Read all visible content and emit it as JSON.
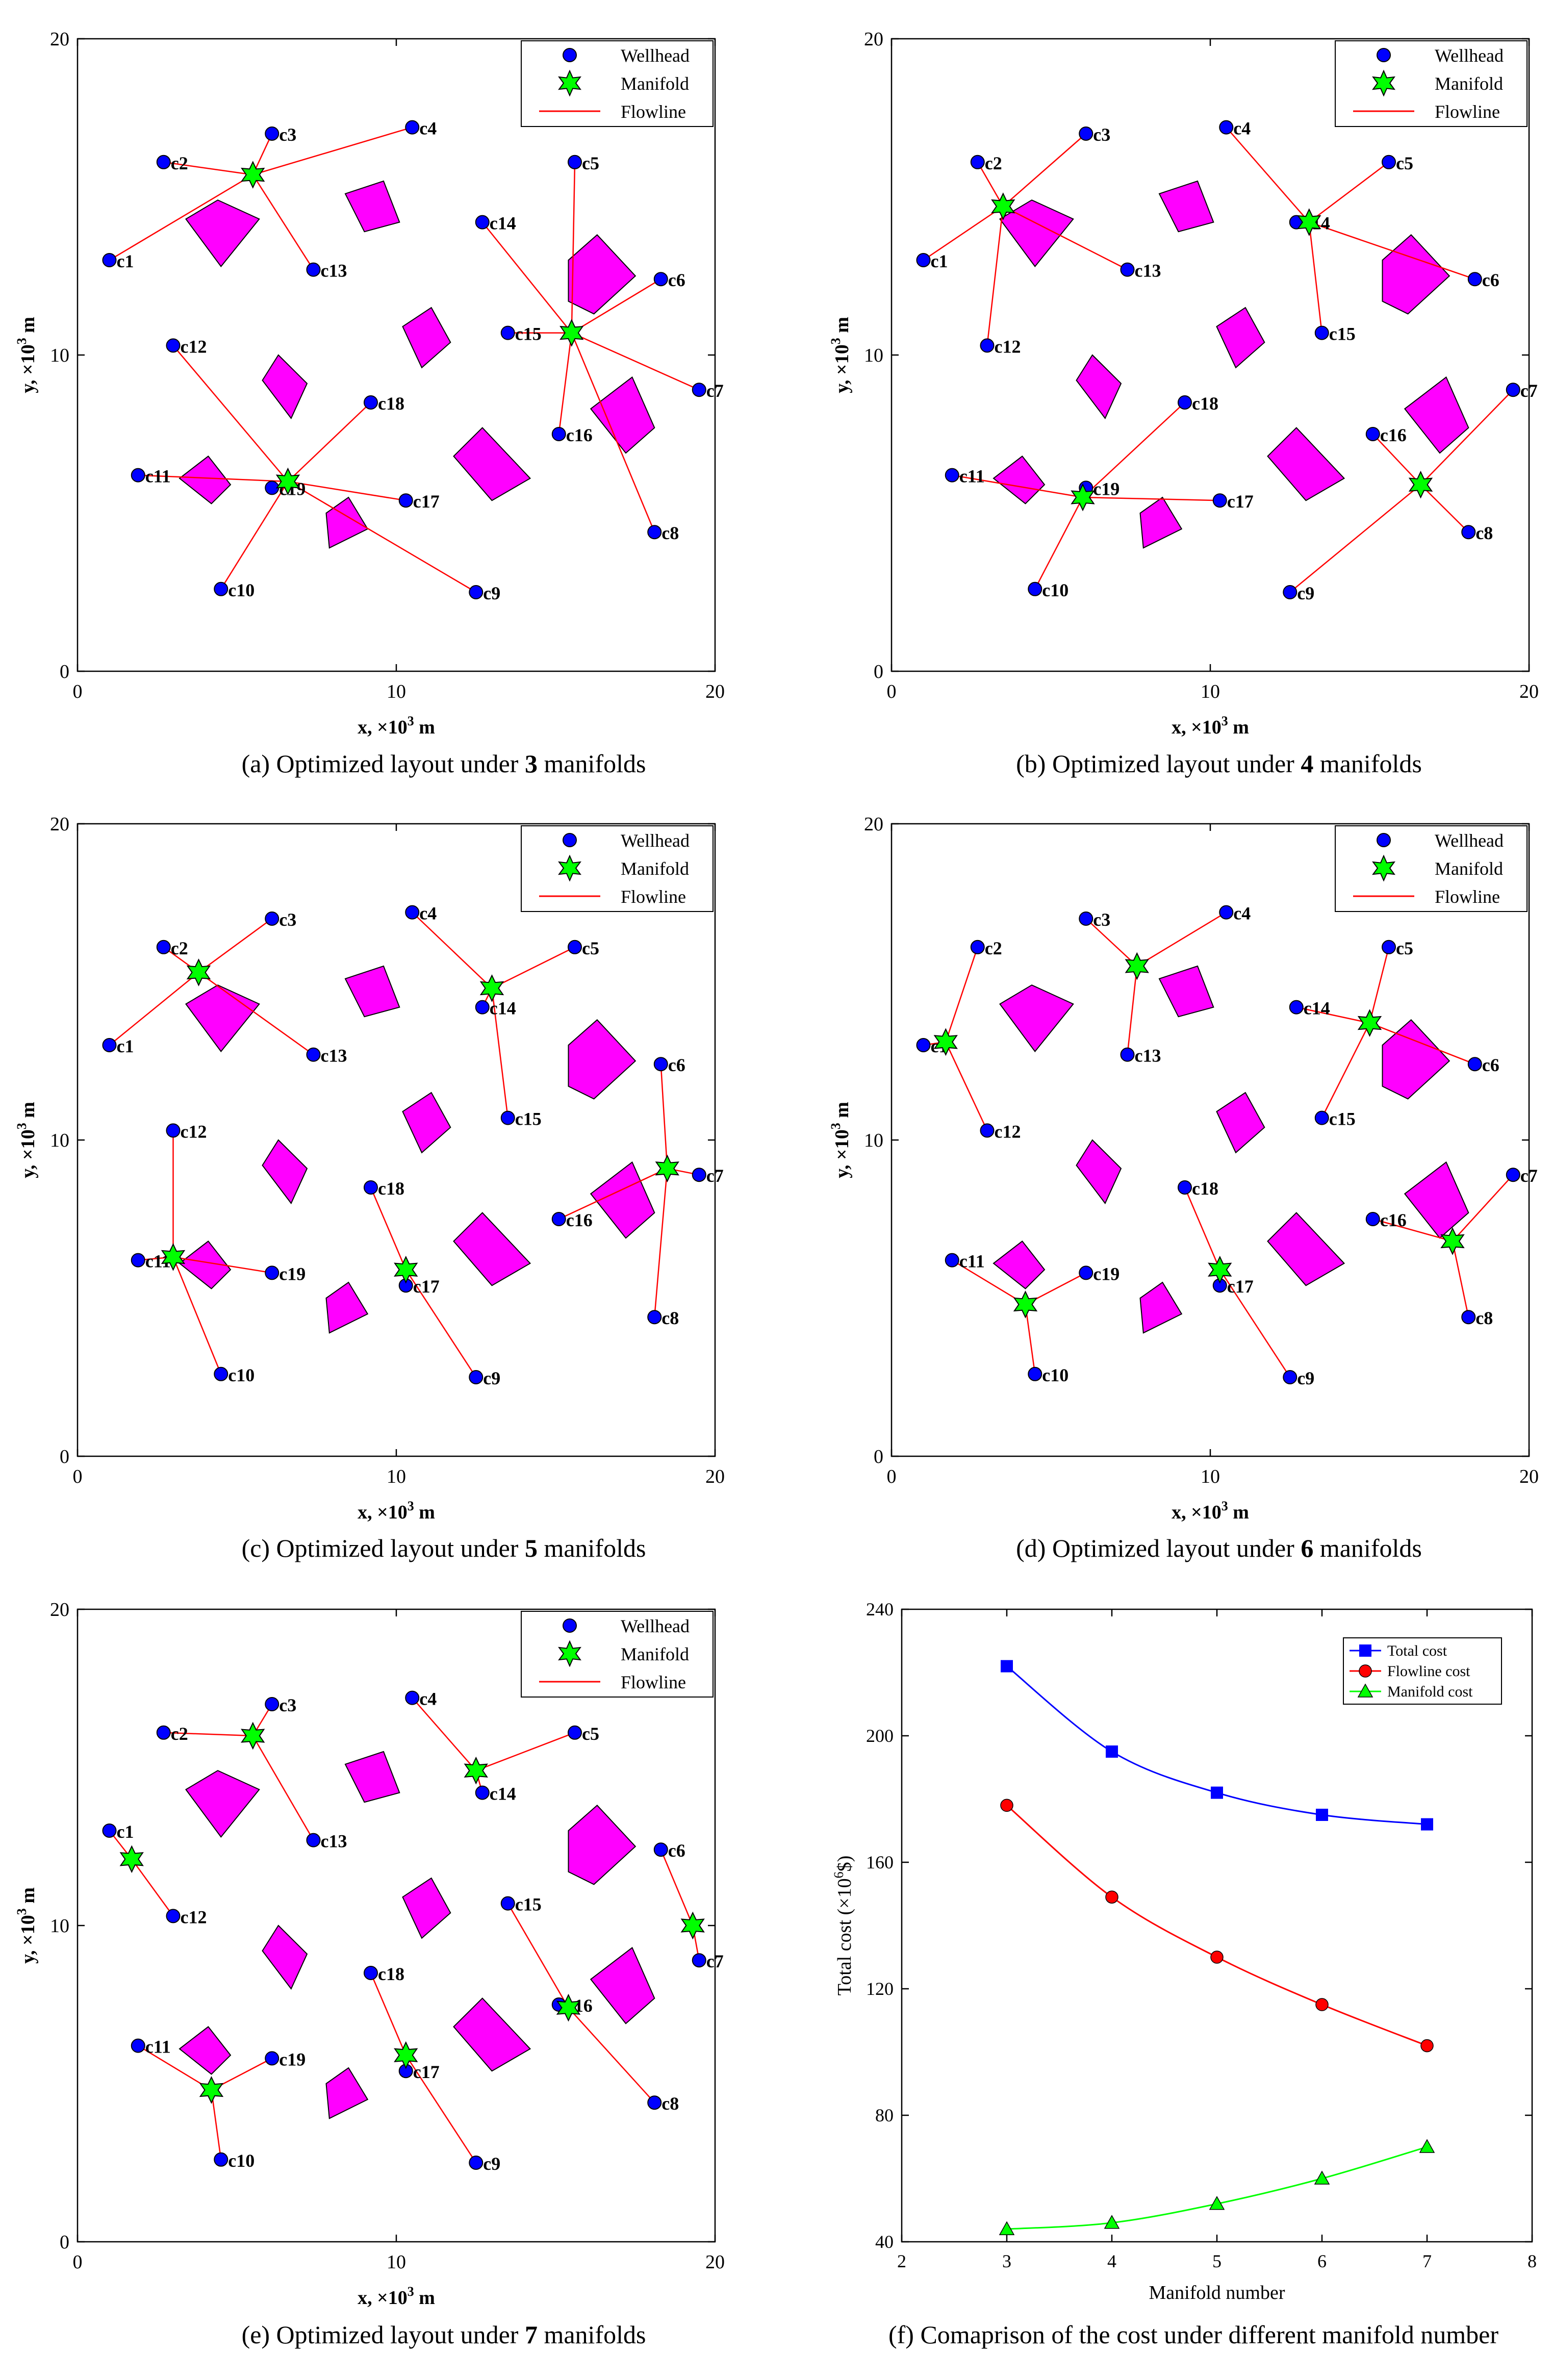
{
  "wells": [
    {
      "id": "c1",
      "x": 1.0,
      "y": 13.0
    },
    {
      "id": "c2",
      "x": 2.7,
      "y": 16.1
    },
    {
      "id": "c3",
      "x": 6.1,
      "y": 17.0
    },
    {
      "id": "c4",
      "x": 10.5,
      "y": 17.2
    },
    {
      "id": "c5",
      "x": 15.6,
      "y": 16.1
    },
    {
      "id": "c6",
      "x": 18.3,
      "y": 12.4
    },
    {
      "id": "c7",
      "x": 19.5,
      "y": 8.9
    },
    {
      "id": "c8",
      "x": 18.1,
      "y": 4.4
    },
    {
      "id": "c9",
      "x": 12.5,
      "y": 2.5
    },
    {
      "id": "c10",
      "x": 4.5,
      "y": 2.6
    },
    {
      "id": "c11",
      "x": 1.9,
      "y": 6.2
    },
    {
      "id": "c12",
      "x": 3.0,
      "y": 10.3
    },
    {
      "id": "c13",
      "x": 7.4,
      "y": 12.7
    },
    {
      "id": "c14",
      "x": 12.7,
      "y": 14.2
    },
    {
      "id": "c15",
      "x": 13.5,
      "y": 10.7
    },
    {
      "id": "c16",
      "x": 15.1,
      "y": 7.5
    },
    {
      "id": "c17",
      "x": 10.3,
      "y": 5.4
    },
    {
      "id": "c18",
      "x": 9.2,
      "y": 8.5
    },
    {
      "id": "c19",
      "x": 6.1,
      "y": 5.8
    }
  ],
  "obstacles": [
    [
      [
        3.4,
        14.3
      ],
      [
        4.4,
        14.9
      ],
      [
        5.7,
        14.3
      ],
      [
        4.5,
        12.8
      ]
    ],
    [
      [
        8.4,
        15.1
      ],
      [
        9.6,
        15.5
      ],
      [
        10.1,
        14.2
      ],
      [
        9.0,
        13.9
      ]
    ],
    [
      [
        15.4,
        13.0
      ],
      [
        16.3,
        13.8
      ],
      [
        17.5,
        12.5
      ],
      [
        16.2,
        11.3
      ],
      [
        15.4,
        11.7
      ]
    ],
    [
      [
        10.2,
        10.9
      ],
      [
        11.1,
        11.5
      ],
      [
        11.7,
        10.4
      ],
      [
        10.8,
        9.6
      ]
    ],
    [
      [
        5.8,
        9.2
      ],
      [
        6.3,
        10.0
      ],
      [
        7.2,
        9.1
      ],
      [
        6.7,
        8.0
      ]
    ],
    [
      [
        16.1,
        8.3
      ],
      [
        17.4,
        9.3
      ],
      [
        18.1,
        7.7
      ],
      [
        17.2,
        6.9
      ]
    ],
    [
      [
        11.8,
        6.8
      ],
      [
        12.7,
        7.7
      ],
      [
        14.2,
        6.1
      ],
      [
        13.0,
        5.4
      ]
    ],
    [
      [
        3.2,
        6.1
      ],
      [
        4.1,
        6.8
      ],
      [
        4.8,
        5.9
      ],
      [
        4.2,
        5.3
      ]
    ],
    [
      [
        7.8,
        5.0
      ],
      [
        8.5,
        5.5
      ],
      [
        9.1,
        4.5
      ],
      [
        7.9,
        3.9
      ]
    ]
  ],
  "legend": {
    "wellhead": "Wellhead",
    "manifold": "Manifold",
    "flowline": "Flowline"
  },
  "axes_common": {
    "xlim": [
      0,
      20
    ],
    "ylim": [
      0,
      20
    ],
    "xticks": [
      "0",
      "10",
      "20"
    ],
    "yticks": [
      "0",
      "10",
      "20"
    ],
    "xlabel_pre": "x, ×10",
    "xlabel_post": " m",
    "ylabel_pre": "y, ×10",
    "ylabel_post": " m",
    "exp": "3"
  },
  "layouts": [
    {
      "caption_pre": "(a) Optimized layout under ",
      "caption_bold": "3",
      "caption_post": " manifolds",
      "manifolds": [
        [
          5.5,
          15.7
        ],
        [
          15.5,
          10.7
        ],
        [
          6.6,
          6.0
        ]
      ],
      "links": [
        [
          0,
          "c1"
        ],
        [
          0,
          "c2"
        ],
        [
          0,
          "c3"
        ],
        [
          0,
          "c4"
        ],
        [
          0,
          "c13"
        ],
        [
          1,
          "c5"
        ],
        [
          1,
          "c6"
        ],
        [
          1,
          "c7"
        ],
        [
          1,
          "c8"
        ],
        [
          1,
          "c14"
        ],
        [
          1,
          "c15"
        ],
        [
          1,
          "c16"
        ],
        [
          2,
          "c9"
        ],
        [
          2,
          "c10"
        ],
        [
          2,
          "c11"
        ],
        [
          2,
          "c12"
        ],
        [
          2,
          "c17"
        ],
        [
          2,
          "c18"
        ],
        [
          2,
          "c19"
        ]
      ]
    },
    {
      "caption_pre": "(b) Optimized layout under ",
      "caption_bold": "4",
      "caption_post": " manifolds",
      "manifolds": [
        [
          3.5,
          14.7
        ],
        [
          13.1,
          14.2
        ],
        [
          16.6,
          5.9
        ],
        [
          6.0,
          5.5
        ]
      ],
      "links": [
        [
          0,
          "c1"
        ],
        [
          0,
          "c2"
        ],
        [
          0,
          "c3"
        ],
        [
          0,
          "c12"
        ],
        [
          0,
          "c13"
        ],
        [
          1,
          "c4"
        ],
        [
          1,
          "c5"
        ],
        [
          1,
          "c6"
        ],
        [
          1,
          "c14"
        ],
        [
          1,
          "c15"
        ],
        [
          2,
          "c7"
        ],
        [
          2,
          "c8"
        ],
        [
          2,
          "c9"
        ],
        [
          2,
          "c16"
        ],
        [
          3,
          "c10"
        ],
        [
          3,
          "c11"
        ],
        [
          3,
          "c17"
        ],
        [
          3,
          "c18"
        ],
        [
          3,
          "c19"
        ]
      ]
    },
    {
      "caption_pre": "(c) Optimized layout under ",
      "caption_bold": "5",
      "caption_post": " manifolds",
      "manifolds": [
        [
          3.8,
          15.3
        ],
        [
          13.0,
          14.8
        ],
        [
          18.5,
          9.1
        ],
        [
          10.3,
          5.9
        ],
        [
          3.0,
          6.3
        ]
      ],
      "links": [
        [
          0,
          "c1"
        ],
        [
          0,
          "c2"
        ],
        [
          0,
          "c3"
        ],
        [
          0,
          "c13"
        ],
        [
          1,
          "c4"
        ],
        [
          1,
          "c5"
        ],
        [
          1,
          "c14"
        ],
        [
          1,
          "c15"
        ],
        [
          2,
          "c6"
        ],
        [
          2,
          "c7"
        ],
        [
          2,
          "c8"
        ],
        [
          2,
          "c16"
        ],
        [
          3,
          "c9"
        ],
        [
          3,
          "c17"
        ],
        [
          3,
          "c18"
        ],
        [
          4,
          "c10"
        ],
        [
          4,
          "c11"
        ],
        [
          4,
          "c12"
        ],
        [
          4,
          "c19"
        ]
      ]
    },
    {
      "caption_pre": "(d) Optimized layout under ",
      "caption_bold": "6",
      "caption_post": " manifolds",
      "manifolds": [
        [
          1.7,
          13.1
        ],
        [
          7.7,
          15.5
        ],
        [
          15.0,
          13.7
        ],
        [
          17.6,
          6.8
        ],
        [
          10.3,
          5.9
        ],
        [
          4.2,
          4.8
        ]
      ],
      "links": [
        [
          0,
          "c1"
        ],
        [
          0,
          "c2"
        ],
        [
          0,
          "c12"
        ],
        [
          1,
          "c3"
        ],
        [
          1,
          "c4"
        ],
        [
          1,
          "c13"
        ],
        [
          2,
          "c5"
        ],
        [
          2,
          "c6"
        ],
        [
          2,
          "c14"
        ],
        [
          2,
          "c15"
        ],
        [
          3,
          "c7"
        ],
        [
          3,
          "c8"
        ],
        [
          3,
          "c16"
        ],
        [
          4,
          "c9"
        ],
        [
          4,
          "c17"
        ],
        [
          4,
          "c18"
        ],
        [
          5,
          "c10"
        ],
        [
          5,
          "c11"
        ],
        [
          5,
          "c19"
        ]
      ]
    },
    {
      "caption_pre": "(e) Optimized layout under ",
      "caption_bold": "7",
      "caption_post": " manifolds",
      "manifolds": [
        [
          1.7,
          12.1
        ],
        [
          5.5,
          16.0
        ],
        [
          12.5,
          14.9
        ],
        [
          19.3,
          10.0
        ],
        [
          15.4,
          7.4
        ],
        [
          10.3,
          5.9
        ],
        [
          4.2,
          4.8
        ]
      ],
      "links": [
        [
          0,
          "c1"
        ],
        [
          0,
          "c12"
        ],
        [
          1,
          "c2"
        ],
        [
          1,
          "c3"
        ],
        [
          1,
          "c13"
        ],
        [
          2,
          "c4"
        ],
        [
          2,
          "c5"
        ],
        [
          2,
          "c14"
        ],
        [
          3,
          "c6"
        ],
        [
          3,
          "c7"
        ],
        [
          4,
          "c15"
        ],
        [
          4,
          "c16"
        ],
        [
          4,
          "c8"
        ],
        [
          5,
          "c9"
        ],
        [
          5,
          "c17"
        ],
        [
          5,
          "c18"
        ],
        [
          6,
          "c10"
        ],
        [
          6,
          "c11"
        ],
        [
          6,
          "c19"
        ]
      ]
    }
  ],
  "chart_data": {
    "type": "line",
    "title": "",
    "caption": "(f) Comaprison of the cost under different manifold number",
    "xlabel": "Manifold number",
    "ylabel_pre": "Total cost (×10",
    "ylabel_exp": "6",
    "ylabel_post": "$)",
    "xlim": [
      2,
      8
    ],
    "ylim": [
      40,
      240
    ],
    "xticks": [
      "2",
      "3",
      "4",
      "5",
      "6",
      "7",
      "8"
    ],
    "yticks": [
      "40",
      "80",
      "120",
      "160",
      "200",
      "240"
    ],
    "x": [
      3,
      4,
      5,
      6,
      7
    ],
    "series": [
      {
        "name": "Total cost",
        "values": [
          222,
          195,
          182,
          175,
          172
        ],
        "color": "#0000ff",
        "marker": "square"
      },
      {
        "name": "Flowline cost",
        "values": [
          178,
          149,
          130,
          115,
          102
        ],
        "color": "#ff0000",
        "marker": "circle"
      },
      {
        "name": "Manifold cost",
        "values": [
          44,
          46,
          52,
          60,
          70
        ],
        "color": "#00ff00",
        "marker": "triangle"
      }
    ],
    "legend_position": "top-right"
  }
}
